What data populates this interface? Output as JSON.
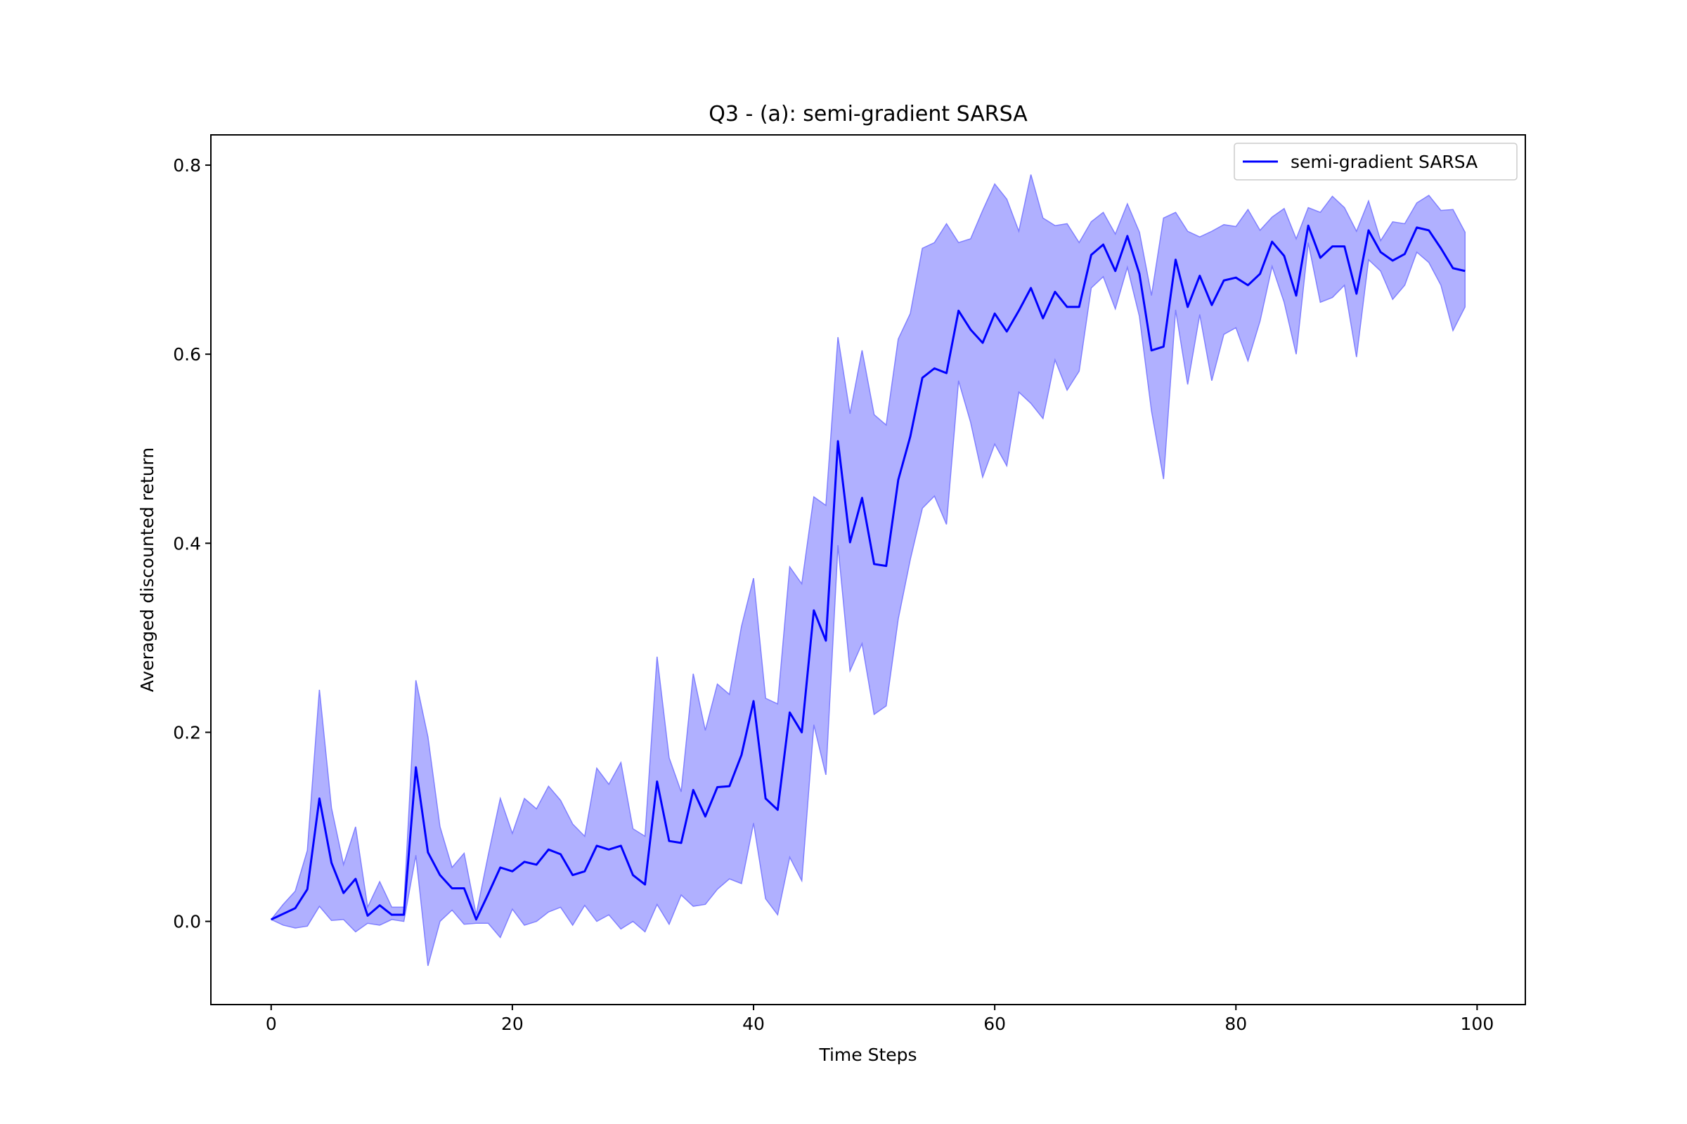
{
  "chart_data": {
    "type": "line",
    "title": "Q3 - (a): semi-gradient SARSA",
    "xlabel": "Time Steps",
    "ylabel": "Averaged discounted return",
    "xlim": [
      -5,
      104
    ],
    "ylim": [
      -0.088,
      0.832
    ],
    "xticks": [
      0,
      20,
      40,
      60,
      80,
      100
    ],
    "xtick_labels": [
      "0",
      "20",
      "40",
      "60",
      "80",
      "100"
    ],
    "yticks": [
      0.0,
      0.2,
      0.4,
      0.6,
      0.8
    ],
    "ytick_labels": [
      "0.0",
      "0.2",
      "0.4",
      "0.6",
      "0.8"
    ],
    "grid": false,
    "legend_position": "top-right",
    "colors": {
      "line": "#0000ff",
      "band": "#b0b0ff",
      "band_edge": "#8080ff"
    },
    "series": [
      {
        "name": "semi-gradient SARSA",
        "x": [
          0,
          1,
          2,
          3,
          4,
          5,
          6,
          7,
          8,
          9,
          10,
          11,
          12,
          13,
          14,
          15,
          16,
          17,
          18,
          19,
          20,
          21,
          22,
          23,
          24,
          25,
          26,
          27,
          28,
          29,
          30,
          31,
          32,
          33,
          34,
          35,
          36,
          37,
          38,
          39,
          40,
          41,
          42,
          43,
          44,
          45,
          46,
          47,
          48,
          49,
          50,
          51,
          52,
          53,
          54,
          55,
          56,
          57,
          58,
          59,
          60,
          61,
          62,
          63,
          64,
          65,
          66,
          67,
          68,
          69,
          70,
          71,
          72,
          73,
          74,
          75,
          76,
          77,
          78,
          79,
          80,
          81,
          82,
          83,
          84,
          85,
          86,
          87,
          88,
          89,
          90,
          91,
          92,
          93,
          94,
          95,
          96,
          97,
          98,
          99
        ],
        "mean": [
          0.002,
          0.008,
          0.014,
          0.034,
          0.13,
          0.062,
          0.03,
          0.045,
          0.006,
          0.017,
          0.007,
          0.007,
          0.163,
          0.073,
          0.049,
          0.035,
          0.035,
          0.002,
          0.029,
          0.057,
          0.053,
          0.063,
          0.06,
          0.076,
          0.071,
          0.049,
          0.053,
          0.08,
          0.076,
          0.08,
          0.049,
          0.039,
          0.148,
          0.085,
          0.083,
          0.139,
          0.111,
          0.142,
          0.143,
          0.176,
          0.233,
          0.13,
          0.118,
          0.221,
          0.2,
          0.329,
          0.297,
          0.508,
          0.401,
          0.448,
          0.378,
          0.376,
          0.467,
          0.513,
          0.575,
          0.585,
          0.58,
          0.646,
          0.626,
          0.612,
          0.643,
          0.624,
          0.646,
          0.67,
          0.638,
          0.666,
          0.65,
          0.65,
          0.705,
          0.716,
          0.688,
          0.725,
          0.685,
          0.604,
          0.608,
          0.7,
          0.65,
          0.683,
          0.652,
          0.678,
          0.681,
          0.673,
          0.685,
          0.719,
          0.704,
          0.662,
          0.736,
          0.702,
          0.714,
          0.714,
          0.664,
          0.731,
          0.708,
          0.699,
          0.706,
          0.734,
          0.731,
          0.712,
          0.691,
          0.688
        ],
        "upper": [
          0.002,
          0.018,
          0.032,
          0.075,
          0.245,
          0.12,
          0.06,
          0.1,
          0.015,
          0.042,
          0.015,
          0.015,
          0.255,
          0.195,
          0.1,
          0.057,
          0.072,
          0.007,
          0.07,
          0.13,
          0.093,
          0.13,
          0.119,
          0.143,
          0.128,
          0.103,
          0.09,
          0.162,
          0.145,
          0.168,
          0.098,
          0.09,
          0.28,
          0.173,
          0.137,
          0.262,
          0.202,
          0.251,
          0.24,
          0.312,
          0.363,
          0.236,
          0.23,
          0.375,
          0.357,
          0.449,
          0.44,
          0.618,
          0.537,
          0.604,
          0.536,
          0.525,
          0.616,
          0.643,
          0.712,
          0.718,
          0.738,
          0.718,
          0.722,
          0.752,
          0.78,
          0.764,
          0.73,
          0.79,
          0.744,
          0.736,
          0.738,
          0.718,
          0.74,
          0.75,
          0.727,
          0.759,
          0.729,
          0.662,
          0.744,
          0.75,
          0.73,
          0.724,
          0.73,
          0.737,
          0.735,
          0.753,
          0.731,
          0.745,
          0.754,
          0.722,
          0.755,
          0.75,
          0.767,
          0.755,
          0.73,
          0.762,
          0.72,
          0.74,
          0.738,
          0.76,
          0.768,
          0.752,
          0.753,
          0.729
        ],
        "lower": [
          0.002,
          -0.004,
          -0.007,
          -0.005,
          0.016,
          0.001,
          0.002,
          -0.011,
          -0.002,
          -0.004,
          0.002,
          0.0,
          0.07,
          -0.047,
          0.0,
          0.012,
          -0.003,
          -0.002,
          -0.002,
          -0.017,
          0.013,
          -0.004,
          0.0,
          0.01,
          0.015,
          -0.004,
          0.017,
          0.0,
          0.007,
          -0.008,
          0.0,
          -0.011,
          0.018,
          -0.003,
          0.028,
          0.016,
          0.018,
          0.034,
          0.045,
          0.04,
          0.104,
          0.024,
          0.007,
          0.068,
          0.043,
          0.208,
          0.155,
          0.398,
          0.265,
          0.294,
          0.219,
          0.228,
          0.32,
          0.383,
          0.437,
          0.45,
          0.42,
          0.572,
          0.528,
          0.47,
          0.505,
          0.482,
          0.56,
          0.548,
          0.532,
          0.594,
          0.562,
          0.582,
          0.67,
          0.682,
          0.648,
          0.692,
          0.64,
          0.54,
          0.468,
          0.647,
          0.568,
          0.642,
          0.572,
          0.621,
          0.628,
          0.593,
          0.635,
          0.693,
          0.655,
          0.6,
          0.718,
          0.655,
          0.66,
          0.673,
          0.597,
          0.7,
          0.688,
          0.658,
          0.673,
          0.708,
          0.697,
          0.673,
          0.625,
          0.65
        ]
      }
    ]
  }
}
